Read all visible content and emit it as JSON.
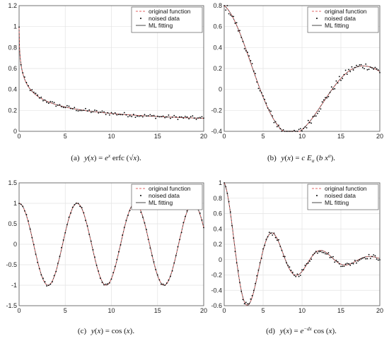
{
  "legend_labels": [
    "original function",
    "noised data",
    "ML fitting"
  ],
  "chart_data": [
    {
      "type": "line",
      "id": "a",
      "caption": {
        "tag": "(a)",
        "formula": "y(x) = e^x erfc (√x)."
      },
      "xlim": [
        0,
        20
      ],
      "ylim": [
        0,
        1.2
      ],
      "xticks": [
        0,
        5,
        10,
        15,
        20
      ],
      "yticks": [
        0,
        0.2,
        0.4,
        0.6,
        0.8,
        1,
        1.2
      ],
      "ytick_labels": [
        "0",
        "0.2",
        "0.4",
        "0.6",
        "0.8",
        "1",
        "1.2"
      ],
      "grid": true,
      "legend_position": "top-right",
      "function": "exp(x)*erfc(sqrt(x))",
      "noise_amplitude": 0.02,
      "series": [
        {
          "name": "original function",
          "style": "dashed",
          "color": "#e06666"
        },
        {
          "name": "noised data",
          "style": "dots",
          "color": "#000000"
        },
        {
          "name": "ML fitting",
          "style": "solid",
          "color": "#333333"
        }
      ]
    },
    {
      "type": "line",
      "id": "b",
      "caption": {
        "tag": "(b)",
        "formula": "y(x) = c E_α (b x^α)."
      },
      "xlim": [
        0,
        20
      ],
      "ylim": [
        -0.4,
        0.8
      ],
      "xticks": [
        0,
        5,
        10,
        15,
        20
      ],
      "yticks": [
        -0.4,
        -0.2,
        0,
        0.2,
        0.4,
        0.6,
        0.8
      ],
      "ytick_labels": [
        "-0.4",
        "-0.2",
        "0",
        "0.2",
        "0.4",
        "0.6",
        "0.8"
      ],
      "grid": true,
      "legend_position": "top-right",
      "function": "0.8*Mittag-Leffler-type decay",
      "noise_amplitude": 0.035,
      "series": [
        {
          "name": "original function",
          "style": "dashed",
          "color": "#e06666"
        },
        {
          "name": "noised data",
          "style": "dots",
          "color": "#000000"
        },
        {
          "name": "ML fitting",
          "style": "solid",
          "color": "#333333"
        }
      ]
    },
    {
      "type": "line",
      "id": "c",
      "caption": {
        "tag": "(c)",
        "formula": "y(x) = cos (x)."
      },
      "xlim": [
        0,
        20
      ],
      "ylim": [
        -1.5,
        1.5
      ],
      "xticks": [
        0,
        5,
        10,
        15,
        20
      ],
      "yticks": [
        -1.5,
        -1,
        -0.5,
        0,
        0.5,
        1,
        1.5
      ],
      "ytick_labels": [
        "-1.5",
        "-1",
        "-0.5",
        "0",
        "0.5",
        "1",
        "1.5"
      ],
      "grid": true,
      "legend_position": "top-right",
      "function": "cos(x)",
      "noise_amplitude": 0.03,
      "series": [
        {
          "name": "original function",
          "style": "dashed",
          "color": "#e06666"
        },
        {
          "name": "noised data",
          "style": "dots",
          "color": "#000000"
        },
        {
          "name": "ML fitting",
          "style": "solid",
          "color": "#333333"
        }
      ]
    },
    {
      "type": "line",
      "id": "d",
      "caption": {
        "tag": "(d)",
        "formula": "y(x) = e^(−dx) cos (x)."
      },
      "xlim": [
        0,
        20
      ],
      "ylim": [
        -0.6,
        1
      ],
      "xticks": [
        0,
        5,
        10,
        15,
        20
      ],
      "yticks": [
        -0.6,
        -0.4,
        -0.2,
        0,
        0.2,
        0.4,
        0.6,
        0.8,
        1
      ],
      "ytick_labels": [
        "-0.6",
        "-0.4",
        "-0.2",
        "0",
        "0.2",
        "0.4",
        "0.6",
        "0.8",
        "1"
      ],
      "grid": true,
      "legend_position": "top-right",
      "function": "exp(-0.17*x)*cos(x)",
      "noise_amplitude": 0.03,
      "series": [
        {
          "name": "original function",
          "style": "dashed",
          "color": "#e06666"
        },
        {
          "name": "noised data",
          "style": "dots",
          "color": "#000000"
        },
        {
          "name": "ML fitting",
          "style": "solid",
          "color": "#333333"
        }
      ]
    }
  ]
}
